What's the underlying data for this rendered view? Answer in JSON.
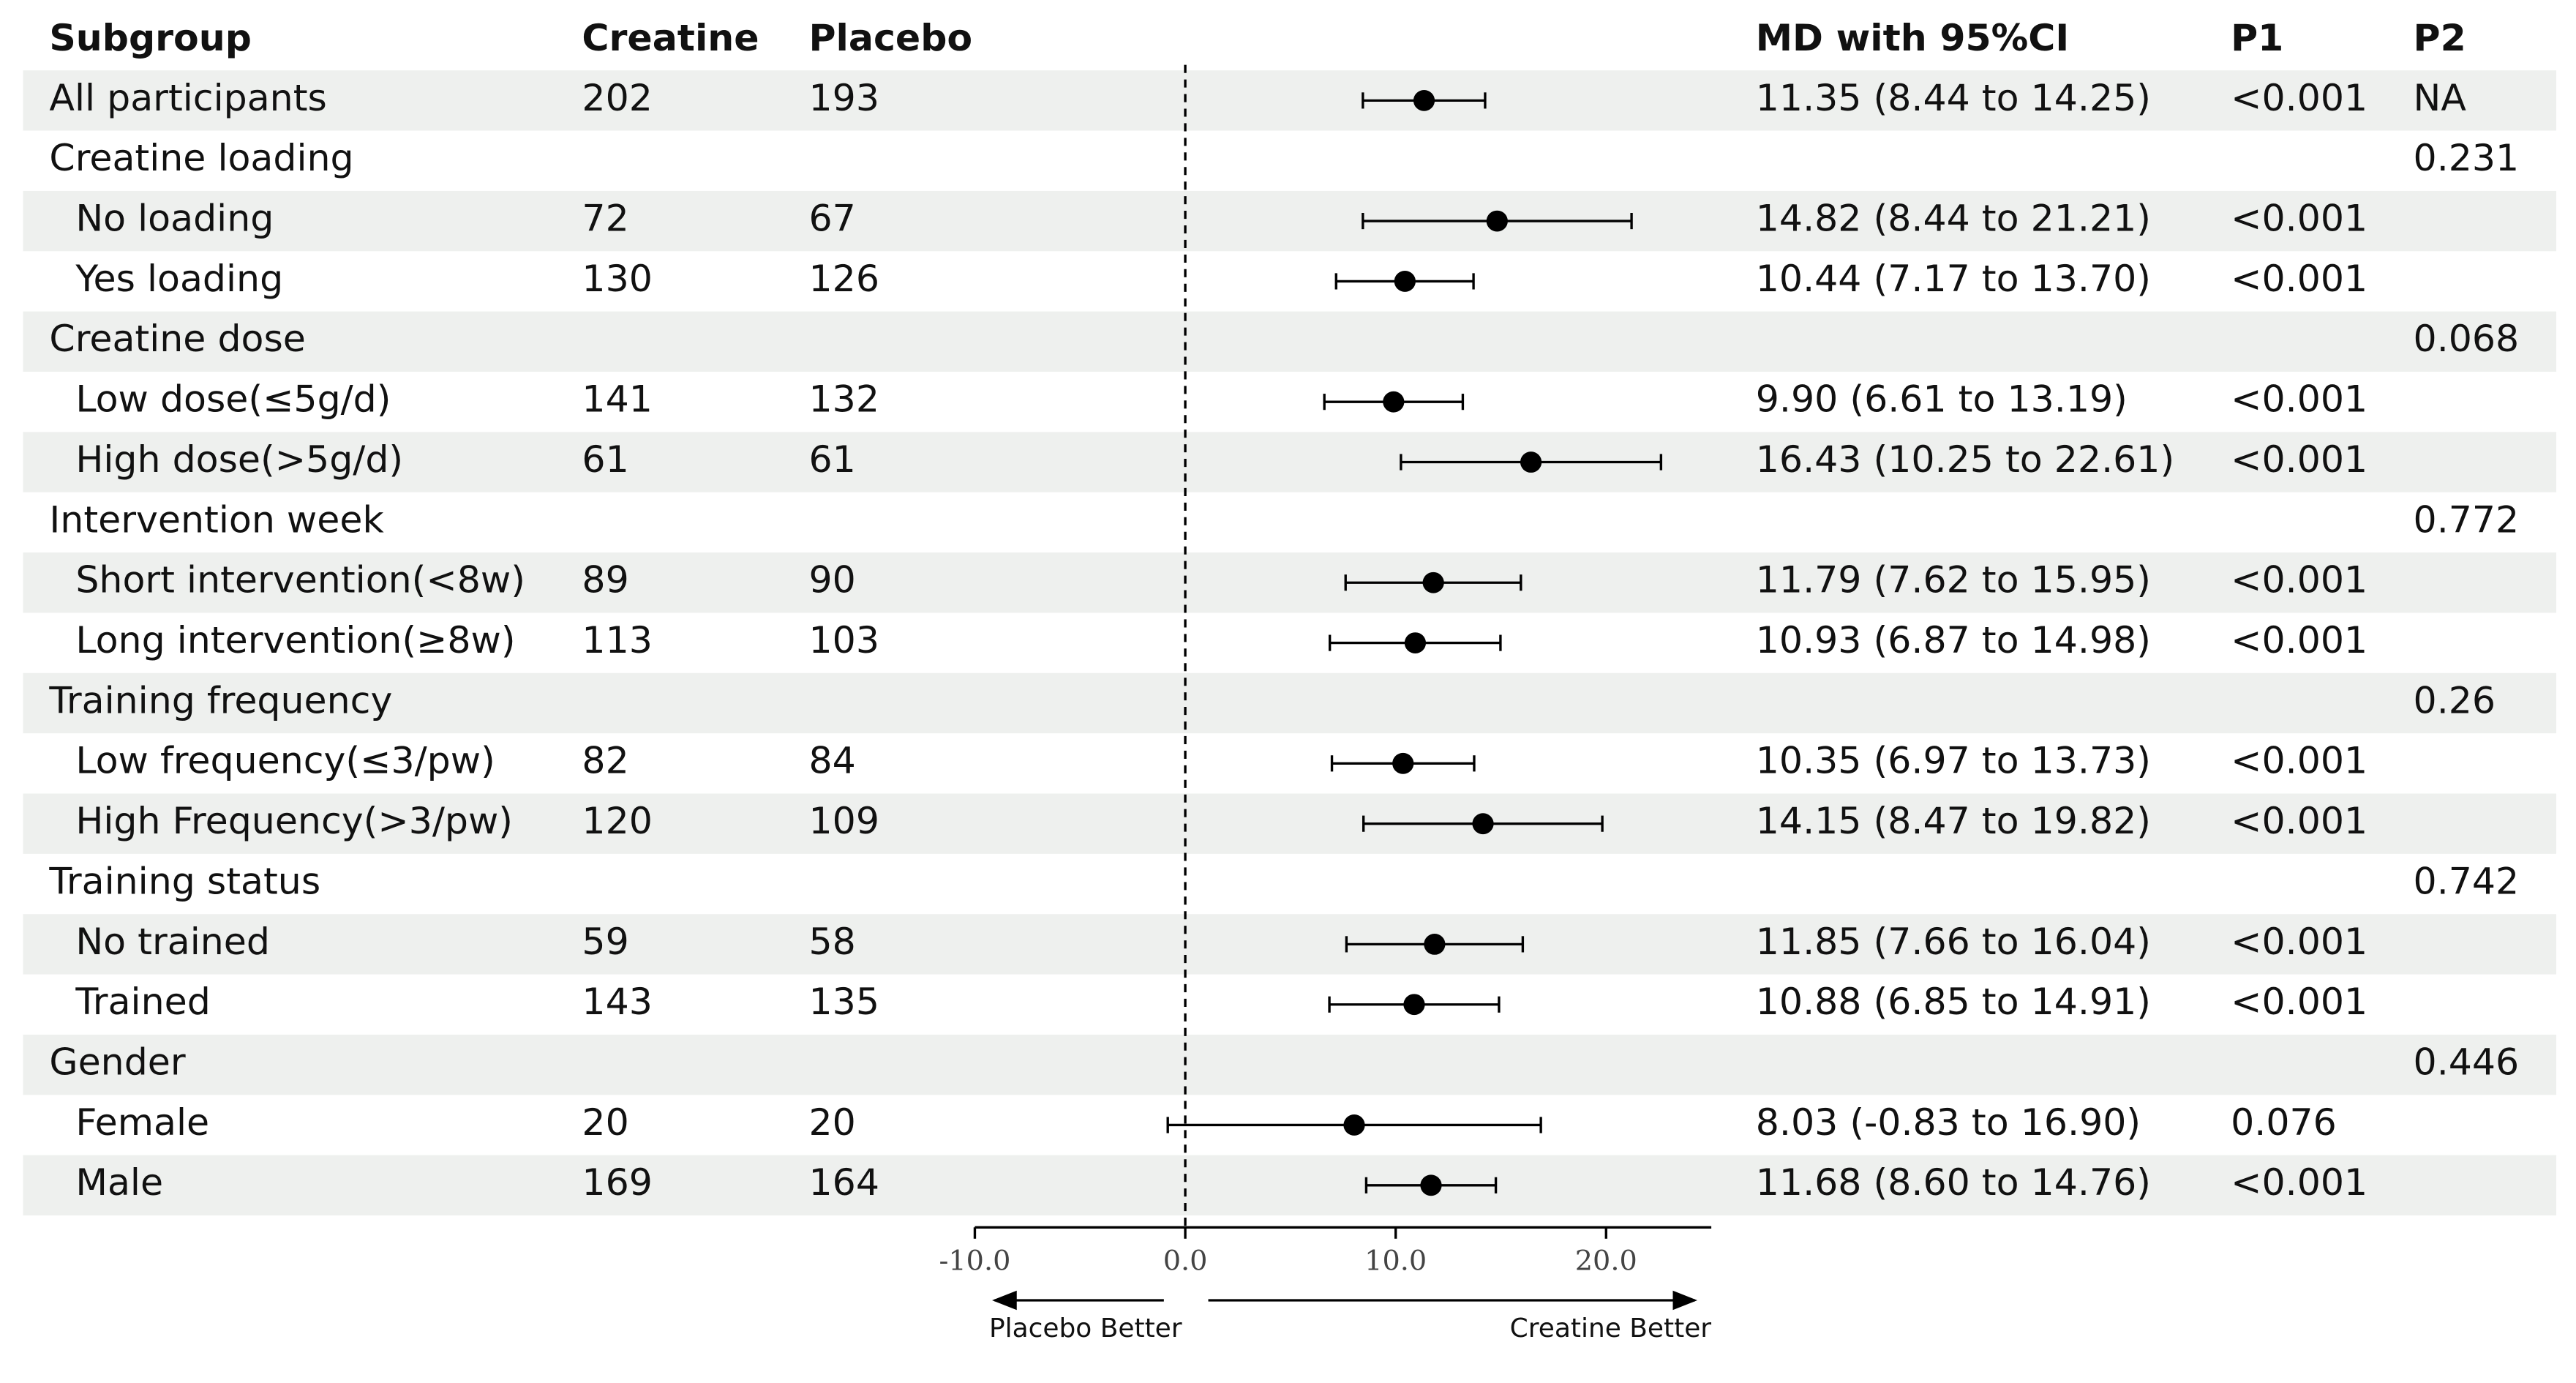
{
  "chart_data": {
    "type": "forest",
    "columns": [
      "Subgroup",
      "Creatine",
      "Placebo",
      "MD with 95%CI",
      "P1",
      "P2"
    ],
    "overall": {
      "label": "All participants",
      "creatine": 202,
      "placebo": 193,
      "md": 11.35,
      "lower": 8.44,
      "upper": 14.25,
      "md_label": "11.35 (8.44 to 14.25)",
      "p1": "<0.001",
      "p2": "NA"
    },
    "groups": [
      {
        "name": "Creatine loading",
        "p2": "0.231",
        "items": [
          {
            "label": "No loading",
            "creatine": 72,
            "placebo": 67,
            "md": 14.82,
            "lower": 8.44,
            "upper": 21.21,
            "md_label": "14.82 (8.44 to 21.21)",
            "p1": "<0.001"
          },
          {
            "label": "Yes loading",
            "creatine": 130,
            "placebo": 126,
            "md": 10.44,
            "lower": 7.17,
            "upper": 13.7,
            "md_label": "10.44 (7.17 to 13.70)",
            "p1": "<0.001"
          }
        ]
      },
      {
        "name": "Creatine dose",
        "p2": "0.068",
        "items": [
          {
            "label": "Low dose(≤5g/d)",
            "creatine": 141,
            "placebo": 132,
            "md": 9.9,
            "lower": 6.61,
            "upper": 13.19,
            "md_label": "9.90 (6.61 to 13.19)",
            "p1": "<0.001"
          },
          {
            "label": "High dose(>5g/d)",
            "creatine": 61,
            "placebo": 61,
            "md": 16.43,
            "lower": 10.25,
            "upper": 22.61,
            "md_label": "16.43 (10.25 to 22.61)",
            "p1": "<0.001"
          }
        ]
      },
      {
        "name": "Intervention week",
        "p2": "0.772",
        "items": [
          {
            "label": "Short intervention(<8w)",
            "creatine": 89,
            "placebo": 90,
            "md": 11.79,
            "lower": 7.62,
            "upper": 15.95,
            "md_label": "11.79 (7.62 to 15.95)",
            "p1": "<0.001"
          },
          {
            "label": "Long intervention(≥8w)",
            "creatine": 113,
            "placebo": 103,
            "md": 10.93,
            "lower": 6.87,
            "upper": 14.98,
            "md_label": "10.93 (6.87 to 14.98)",
            "p1": "<0.001"
          }
        ]
      },
      {
        "name": "Training frequency",
        "p2": "0.26",
        "items": [
          {
            "label": "Low frequency(≤3/pw)",
            "creatine": 82,
            "placebo": 84,
            "md": 10.35,
            "lower": 6.97,
            "upper": 13.73,
            "md_label": "10.35 (6.97 to 13.73)",
            "p1": "<0.001"
          },
          {
            "label": "High Frequency(>3/pw)",
            "creatine": 120,
            "placebo": 109,
            "md": 14.15,
            "lower": 8.47,
            "upper": 19.82,
            "md_label": "14.15 (8.47 to 19.82)",
            "p1": "<0.001"
          }
        ]
      },
      {
        "name": "Training status",
        "p2": "0.742",
        "items": [
          {
            "label": "No trained",
            "creatine": 59,
            "placebo": 58,
            "md": 11.85,
            "lower": 7.66,
            "upper": 16.04,
            "md_label": "11.85 (7.66 to 16.04)",
            "p1": "<0.001"
          },
          {
            "label": "Trained",
            "creatine": 143,
            "placebo": 135,
            "md": 10.88,
            "lower": 6.85,
            "upper": 14.91,
            "md_label": "10.88 (6.85 to 14.91)",
            "p1": "<0.001"
          }
        ]
      },
      {
        "name": "Gender",
        "p2": "0.446",
        "items": [
          {
            "label": "Female",
            "creatine": 20,
            "placebo": 20,
            "md": 8.03,
            "lower": -0.83,
            "upper": 16.9,
            "md_label": "8.03 (-0.83 to 16.90)",
            "p1": "0.076"
          },
          {
            "label": "Male",
            "creatine": 169,
            "placebo": 164,
            "md": 11.68,
            "lower": 8.6,
            "upper": 14.76,
            "md_label": "11.68 (8.60 to 14.76)",
            "p1": "<0.001"
          }
        ]
      }
    ],
    "xlim": [
      -10,
      25
    ],
    "xticks": [
      {
        "value": -10,
        "label": "-10.0"
      },
      {
        "value": 0,
        "label": "0.0"
      },
      {
        "value": 10,
        "label": "10.0"
      },
      {
        "value": 20,
        "label": "20.0"
      }
    ],
    "reference_line": 0,
    "left_label": "Placebo Better",
    "right_label": "Creatine Better",
    "color": "#000000"
  }
}
